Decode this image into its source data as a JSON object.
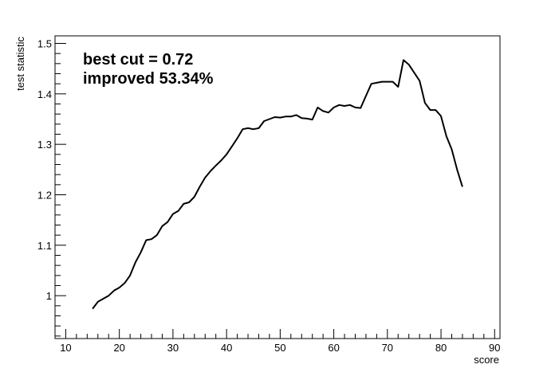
{
  "chart_data": {
    "type": "line",
    "xlabel": "score",
    "ylabel": "test statistic",
    "xlim": [
      8,
      91
    ],
    "ylim": [
      0.915,
      1.515
    ],
    "x_ticks": [
      10,
      20,
      30,
      40,
      50,
      60,
      70,
      80,
      90
    ],
    "y_ticks": [
      1,
      1.1,
      1.2,
      1.3,
      1.4,
      1.5
    ],
    "y_tick_labels": [
      "1",
      "1.1",
      "1.2",
      "1.3",
      "1.4",
      "1.5"
    ],
    "annotations": [
      "best cut = 0.72",
      "improved 53.34%"
    ],
    "series": [
      {
        "x": [
          15,
          16,
          17,
          18,
          19,
          20,
          21,
          22,
          23,
          24,
          25,
          26,
          27,
          28,
          29,
          30,
          31,
          32,
          33,
          34,
          35,
          36,
          37,
          38,
          39,
          40,
          41,
          42,
          43,
          44,
          45,
          46,
          47,
          48,
          49,
          50,
          51,
          52,
          53,
          54,
          55,
          56,
          57,
          58,
          59,
          60,
          61,
          62,
          63,
          64,
          65,
          66,
          67,
          68,
          69,
          70,
          71,
          72,
          73,
          74,
          75,
          76,
          77,
          78,
          79,
          80,
          81,
          82,
          83,
          84
        ],
        "y": [
          0.974,
          0.988,
          0.994,
          1.0,
          1.01,
          1.016,
          1.025,
          1.04,
          1.066,
          1.086,
          1.11,
          1.112,
          1.12,
          1.138,
          1.146,
          1.162,
          1.168,
          1.182,
          1.185,
          1.196,
          1.216,
          1.234,
          1.247,
          1.258,
          1.268,
          1.28,
          1.296,
          1.312,
          1.33,
          1.332,
          1.33,
          1.332,
          1.346,
          1.35,
          1.354,
          1.353,
          1.355,
          1.355,
          1.358,
          1.352,
          1.351,
          1.349,
          1.373,
          1.366,
          1.363,
          1.373,
          1.378,
          1.376,
          1.378,
          1.373,
          1.372,
          1.396,
          1.42,
          1.422,
          1.424,
          1.424,
          1.424,
          1.414,
          1.467,
          1.458,
          1.442,
          1.426,
          1.382,
          1.368,
          1.368,
          1.356,
          1.316,
          1.29,
          1.25,
          1.216
        ]
      }
    ]
  }
}
